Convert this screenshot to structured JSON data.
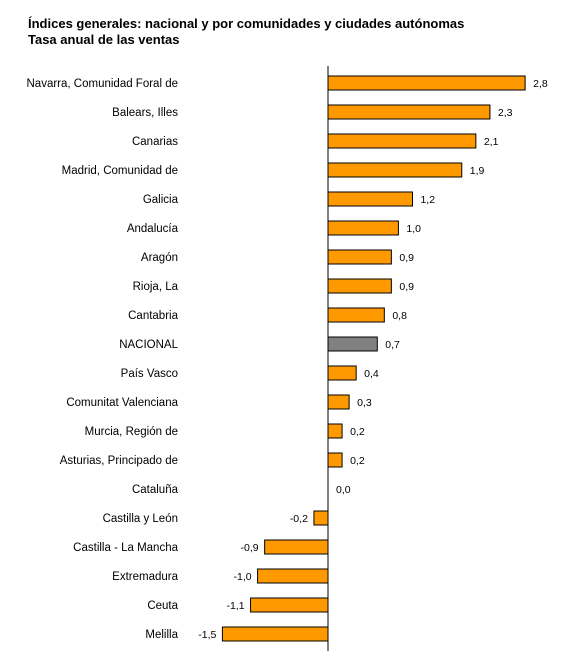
{
  "chart_data": {
    "type": "bar",
    "orientation": "horizontal",
    "title": "Índices generales: nacional y por comunidades y ciudades autónomas",
    "subtitle": "Tasa anual de las ventas",
    "categories": [
      "Navarra, Comunidad Foral de",
      "Balears, Illes",
      "Canarias",
      "Madrid, Comunidad de",
      "Galicia",
      "Andalucía",
      "Aragón",
      "Rioja, La",
      "Cantabria",
      "NACIONAL",
      "País Vasco",
      "Comunitat Valenciana",
      "Murcia, Región de",
      "Asturias, Principado de",
      "Cataluña",
      "Castilla y León",
      "Castilla - La Mancha",
      "Extremadura",
      "Ceuta",
      "Melilla"
    ],
    "values": [
      2.8,
      2.3,
      2.1,
      1.9,
      1.2,
      1.0,
      0.9,
      0.9,
      0.8,
      0.7,
      0.4,
      0.3,
      0.2,
      0.2,
      0.0,
      -0.2,
      -0.9,
      -1.0,
      -1.1,
      -1.5
    ],
    "value_labels": [
      "2,8",
      "2,3",
      "2,1",
      "1,9",
      "1,2",
      "1,0",
      "0,9",
      "0,9",
      "0,8",
      "0,7",
      "0,4",
      "0,3",
      "0,2",
      "0,2",
      "0,0",
      "-0,2",
      "-0,9",
      "-1,0",
      "-1,1",
      "-1,5"
    ],
    "highlight_category": "NACIONAL",
    "xlim": [
      -1.5,
      2.8
    ],
    "grid": false,
    "legend": "none",
    "colors": {
      "bar": "#FF9900",
      "highlight": "#808080",
      "stroke": "#000000",
      "axis": "#000000"
    }
  }
}
